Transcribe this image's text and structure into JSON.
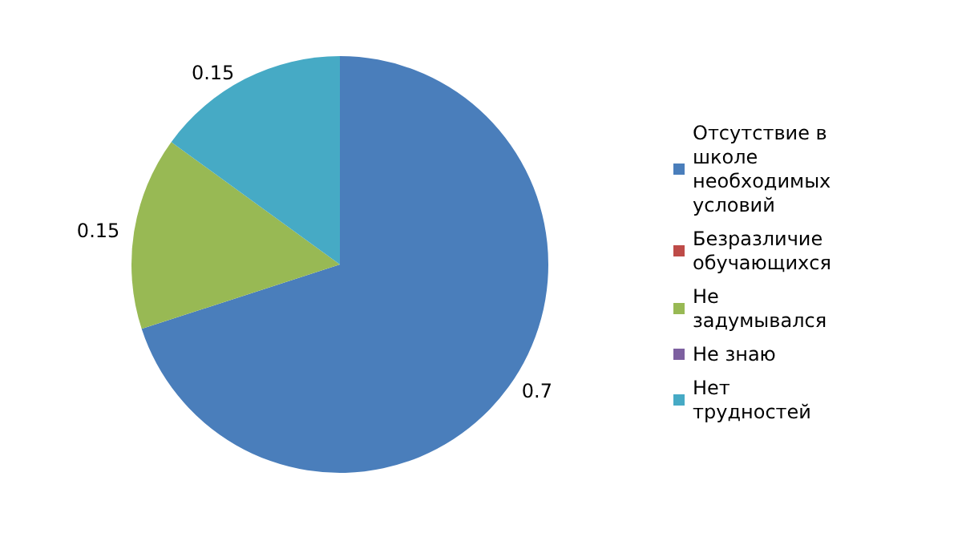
{
  "chart_data": {
    "type": "pie",
    "categories": [
      "Отсутствие в школе необходимых условий",
      "Безразличие обучающихся",
      "Не задумывался",
      "Не знаю",
      "Нет трудностей"
    ],
    "values": [
      0.7,
      0,
      0.15,
      0,
      0.15
    ],
    "colors": [
      "#4a7ebb",
      "#be4b48",
      "#98b954",
      "#7d60a0",
      "#46aac5"
    ],
    "value_labels": [
      "0.7",
      null,
      "0.15",
      null,
      "0.15"
    ],
    "legend": "right"
  }
}
